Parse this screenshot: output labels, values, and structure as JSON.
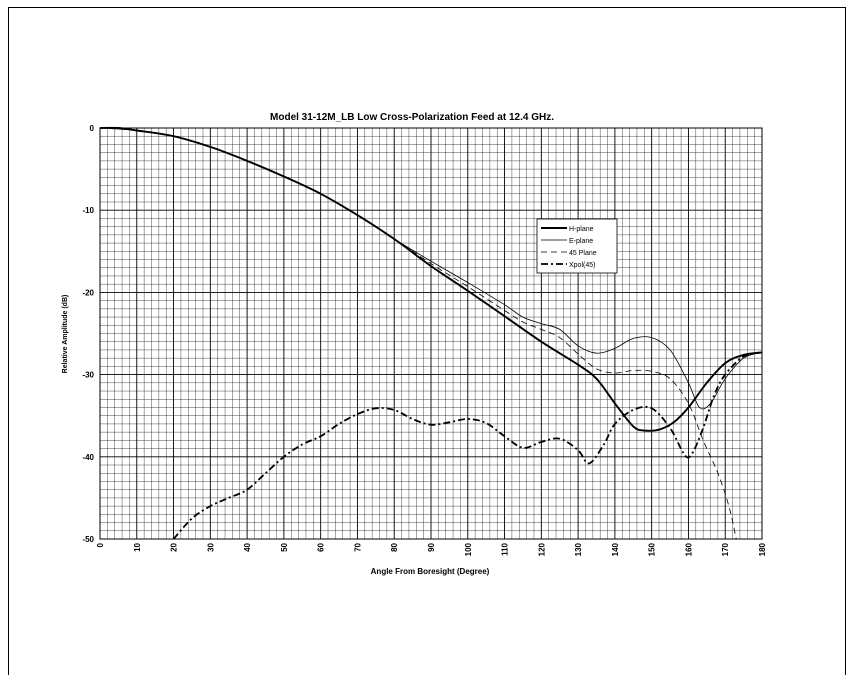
{
  "chart_data": {
    "type": "line",
    "title": "Model 31-12M_LB Low Cross-Polarization Feed at 12.4 GHz.",
    "xlabel": "Angle From Boresight (Degree)",
    "ylabel": "Relative Amplitude (dB)",
    "xlim": [
      0,
      180
    ],
    "ylim": [
      -50,
      0
    ],
    "x_ticks": [
      0,
      10,
      20,
      30,
      40,
      50,
      60,
      70,
      80,
      90,
      100,
      110,
      120,
      130,
      140,
      150,
      160,
      170,
      180
    ],
    "y_ticks": [
      0,
      -10,
      -20,
      -30,
      -40,
      -50
    ],
    "grid": true,
    "legend_position": "center-right",
    "series": [
      {
        "name": "H-plane",
        "style": "solid-thick",
        "points": [
          [
            0,
            0
          ],
          [
            5,
            0
          ],
          [
            10,
            -0.3
          ],
          [
            20,
            -1
          ],
          [
            30,
            -2.3
          ],
          [
            40,
            -4
          ],
          [
            50,
            -5.9
          ],
          [
            60,
            -8
          ],
          [
            70,
            -10.6
          ],
          [
            80,
            -13.5
          ],
          [
            90,
            -16.8
          ],
          [
            100,
            -19.8
          ],
          [
            110,
            -22.9
          ],
          [
            120,
            -26
          ],
          [
            130,
            -28.8
          ],
          [
            135,
            -30.5
          ],
          [
            140,
            -33.5
          ],
          [
            145,
            -36.3
          ],
          [
            148,
            -36.8
          ],
          [
            152,
            -36.7
          ],
          [
            156,
            -35.8
          ],
          [
            160,
            -34
          ],
          [
            165,
            -31
          ],
          [
            170,
            -28.6
          ],
          [
            175,
            -27.6
          ],
          [
            180,
            -27.3
          ]
        ]
      },
      {
        "name": "E-plane",
        "style": "solid-thin",
        "points": [
          [
            0,
            0
          ],
          [
            10,
            -0.3
          ],
          [
            20,
            -1
          ],
          [
            30,
            -2.3
          ],
          [
            40,
            -4
          ],
          [
            50,
            -5.9
          ],
          [
            60,
            -8
          ],
          [
            70,
            -10.6
          ],
          [
            80,
            -13.5
          ],
          [
            90,
            -16.2
          ],
          [
            100,
            -18.8
          ],
          [
            110,
            -21.5
          ],
          [
            115,
            -23
          ],
          [
            120,
            -23.8
          ],
          [
            125,
            -24.5
          ],
          [
            130,
            -26.5
          ],
          [
            135,
            -27.4
          ],
          [
            140,
            -26.8
          ],
          [
            145,
            -25.6
          ],
          [
            150,
            -25.5
          ],
          [
            155,
            -27
          ],
          [
            160,
            -31
          ],
          [
            163,
            -34
          ],
          [
            166,
            -33.5
          ],
          [
            170,
            -30.5
          ],
          [
            175,
            -28
          ],
          [
            180,
            -27.3
          ]
        ]
      },
      {
        "name": "45 Plane",
        "style": "dashed",
        "points": [
          [
            0,
            0
          ],
          [
            10,
            -0.3
          ],
          [
            20,
            -1
          ],
          [
            30,
            -2.3
          ],
          [
            40,
            -4
          ],
          [
            50,
            -5.9
          ],
          [
            60,
            -8
          ],
          [
            70,
            -10.6
          ],
          [
            80,
            -13.5
          ],
          [
            90,
            -16.5
          ],
          [
            100,
            -19.3
          ],
          [
            110,
            -22.2
          ],
          [
            115,
            -23.6
          ],
          [
            120,
            -24.5
          ],
          [
            125,
            -25.5
          ],
          [
            130,
            -27.5
          ],
          [
            135,
            -29.3
          ],
          [
            140,
            -29.8
          ],
          [
            145,
            -29.5
          ],
          [
            150,
            -29.6
          ],
          [
            155,
            -30.5
          ],
          [
            160,
            -33.5
          ],
          [
            164,
            -38
          ],
          [
            168,
            -42
          ],
          [
            171,
            -46
          ],
          [
            173,
            -50
          ]
        ]
      },
      {
        "name": "Xpol(45)",
        "style": "dash-dot-thick",
        "points": [
          [
            20,
            -50
          ],
          [
            25,
            -47.5
          ],
          [
            30,
            -46
          ],
          [
            35,
            -45
          ],
          [
            40,
            -44
          ],
          [
            45,
            -42
          ],
          [
            50,
            -40
          ],
          [
            55,
            -38.5
          ],
          [
            60,
            -37.5
          ],
          [
            65,
            -36
          ],
          [
            70,
            -34.8
          ],
          [
            75,
            -34.1
          ],
          [
            80,
            -34.3
          ],
          [
            85,
            -35.4
          ],
          [
            90,
            -36.1
          ],
          [
            95,
            -35.8
          ],
          [
            100,
            -35.4
          ],
          [
            105,
            -35.9
          ],
          [
            110,
            -37.5
          ],
          [
            115,
            -38.9
          ],
          [
            120,
            -38.2
          ],
          [
            125,
            -37.8
          ],
          [
            130,
            -39.2
          ],
          [
            133,
            -40.8
          ],
          [
            137,
            -38.5
          ],
          [
            140,
            -36
          ],
          [
            145,
            -34.3
          ],
          [
            150,
            -34.1
          ],
          [
            155,
            -36.5
          ],
          [
            159,
            -39.8
          ],
          [
            161,
            -39.6
          ],
          [
            164,
            -36.5
          ],
          [
            167,
            -32.5
          ],
          [
            170,
            -30
          ],
          [
            175,
            -27.8
          ],
          [
            180,
            -27.3
          ]
        ]
      }
    ]
  }
}
